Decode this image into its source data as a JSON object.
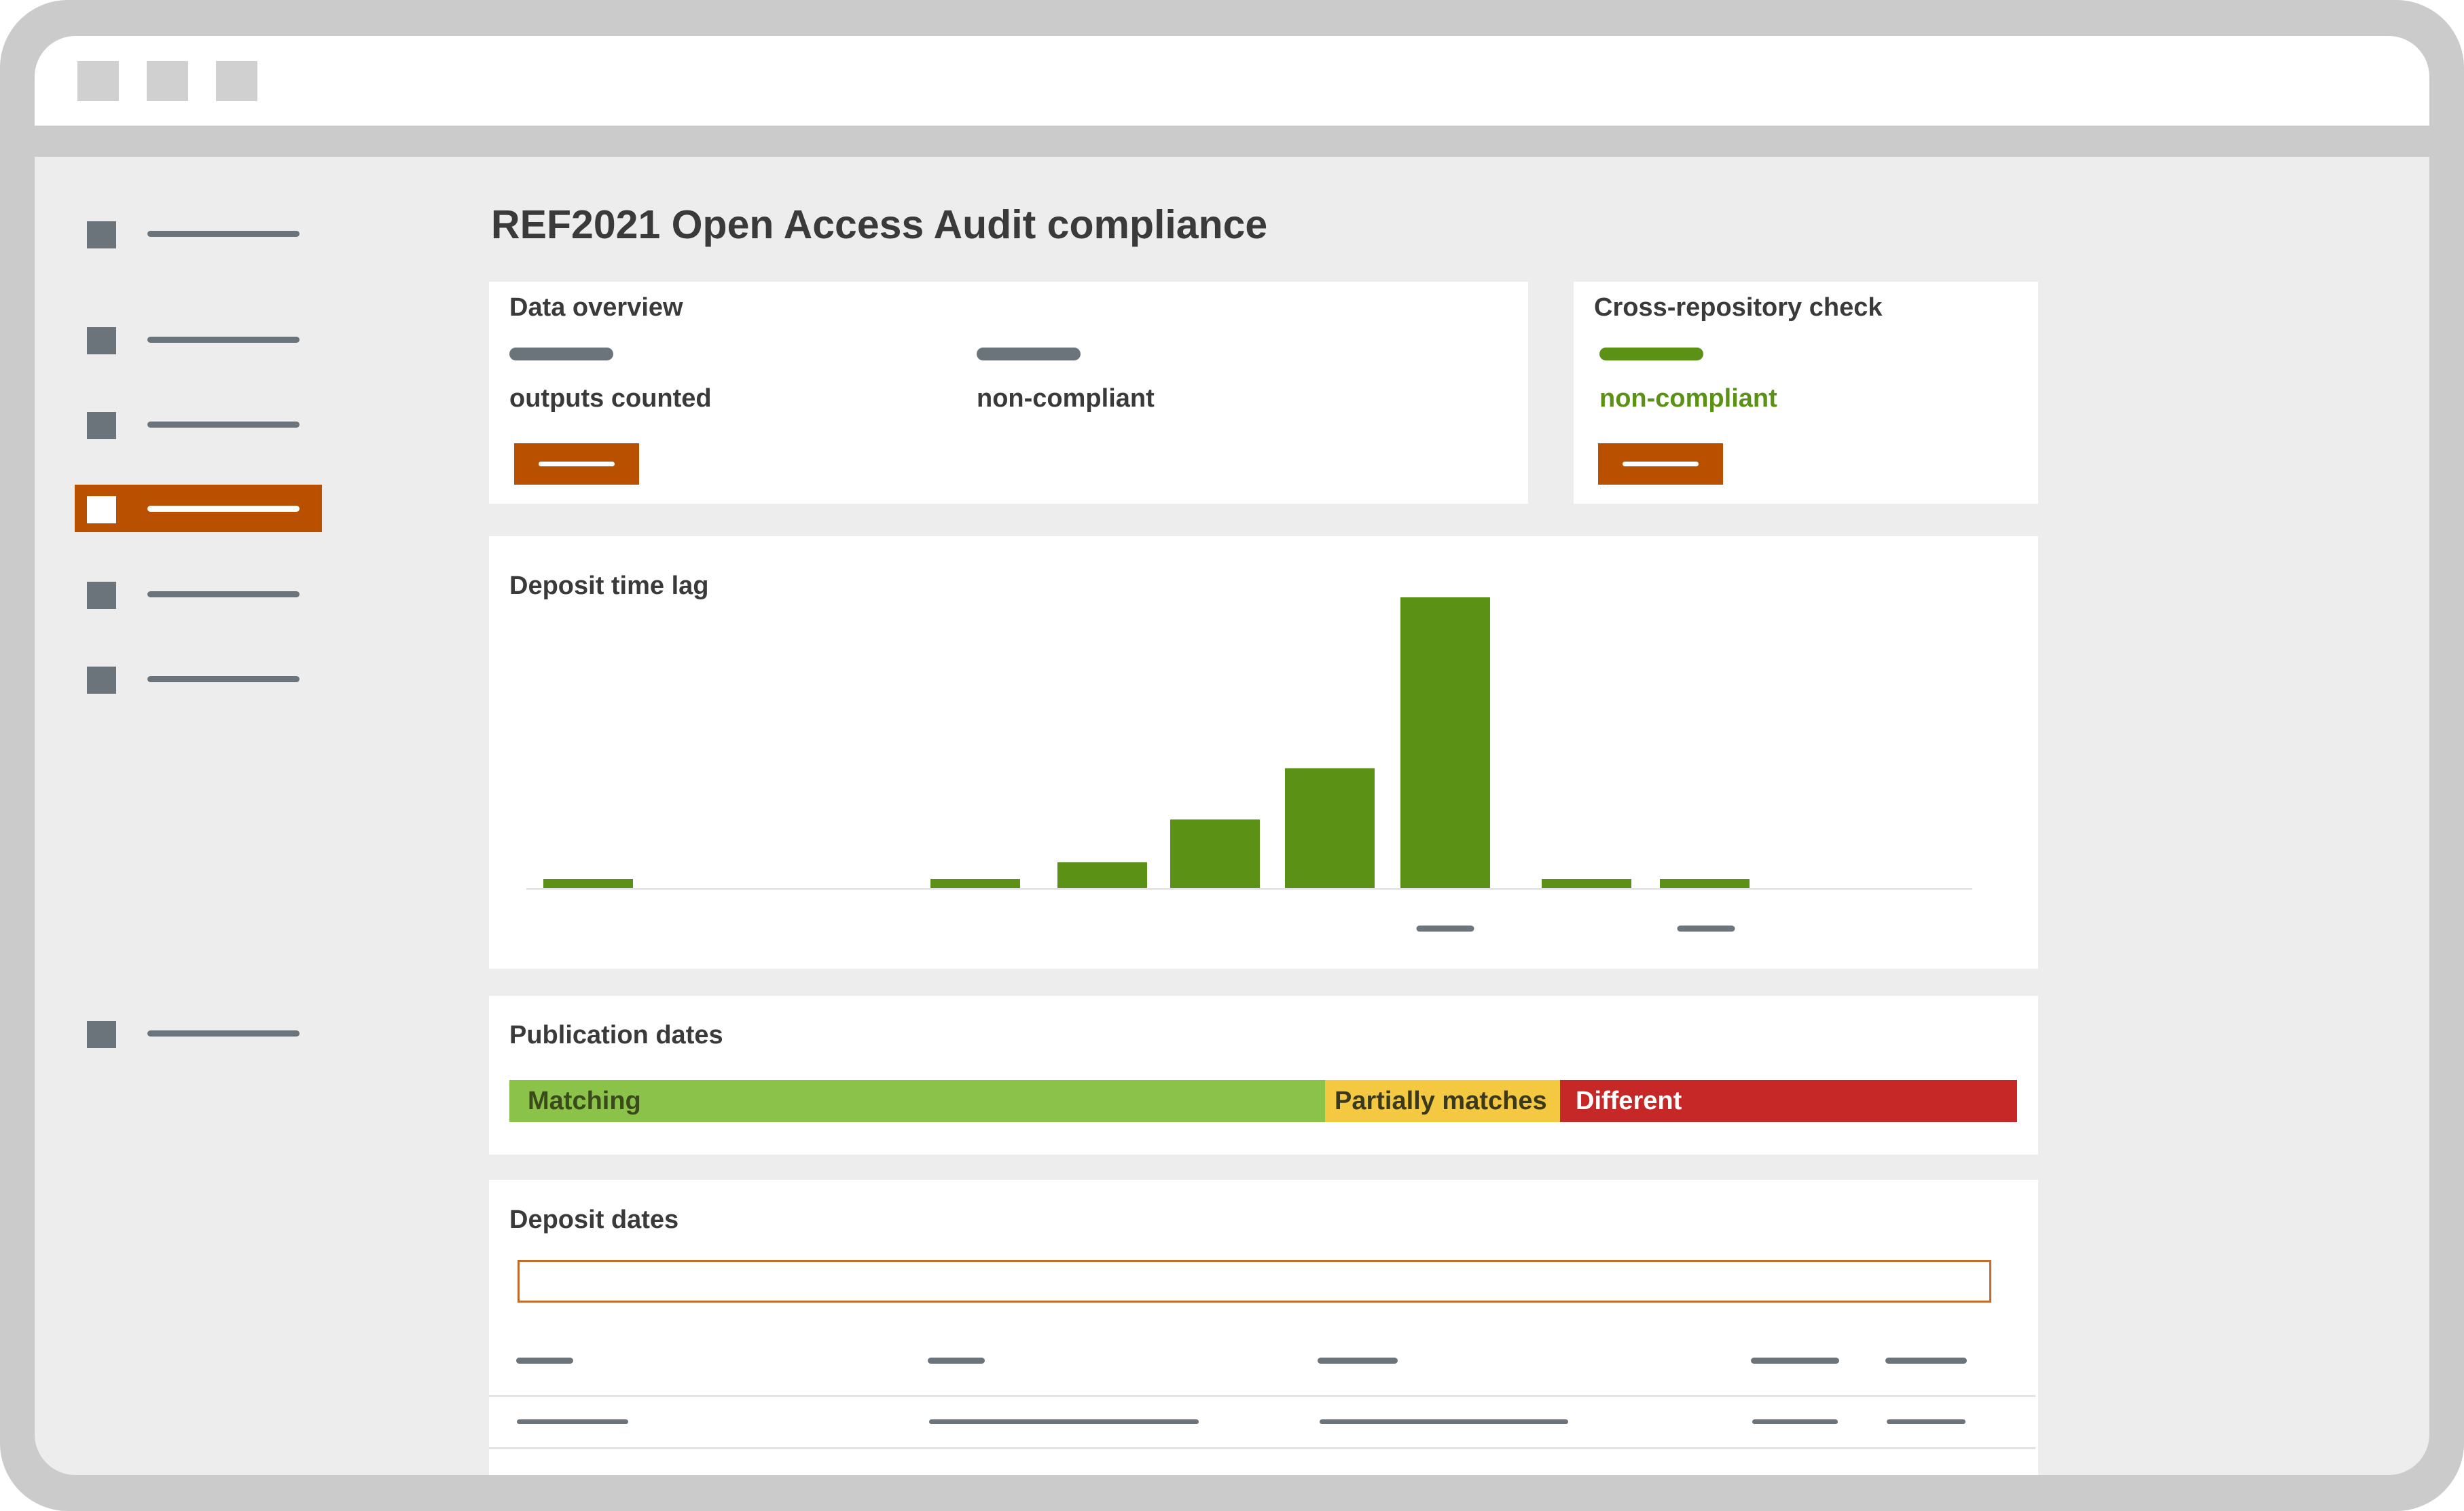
{
  "window": {
    "buttons": [
      "window-button-1",
      "window-button-2",
      "window-button-3"
    ]
  },
  "sidebar": {
    "items": [
      {
        "name": "sidebar-item-1",
        "active": false
      },
      {
        "name": "sidebar-item-2",
        "active": false
      },
      {
        "name": "sidebar-item-3",
        "active": false
      },
      {
        "name": "sidebar-item-4",
        "active": true
      },
      {
        "name": "sidebar-item-5",
        "active": false
      },
      {
        "name": "sidebar-item-6",
        "active": false
      },
      {
        "name": "sidebar-item-7",
        "active": false
      }
    ],
    "accent_color": "#b85000"
  },
  "page": {
    "title": "REF2021 Open Access Audit compliance"
  },
  "data_overview": {
    "title": "Data overview",
    "stat1_label": "outputs counted",
    "stat2_label": "non-compliant"
  },
  "cross_repo": {
    "title": "Cross-repository check",
    "stat_label": "non-compliant",
    "stat_color": "#5b9215"
  },
  "deposit_lag": {
    "title": "Deposit time lag"
  },
  "chart_data": {
    "type": "bar",
    "title": "Deposit time lag",
    "bar_color": "#5b9215",
    "values": [
      1,
      0,
      0,
      0,
      1,
      3,
      8,
      14,
      34,
      1,
      1
    ],
    "ylim": [
      0,
      34
    ],
    "grid": false
  },
  "publication_dates": {
    "title": "Publication dates",
    "segments": [
      {
        "label": "Matching",
        "share": 0.541,
        "color": "#8bc34a"
      },
      {
        "label": "Partially matches",
        "share": 0.156,
        "color": "#f5c842"
      },
      {
        "label": "Different",
        "share": 0.303,
        "color": "#c62828"
      }
    ]
  },
  "deposit_dates": {
    "title": "Deposit dates"
  }
}
